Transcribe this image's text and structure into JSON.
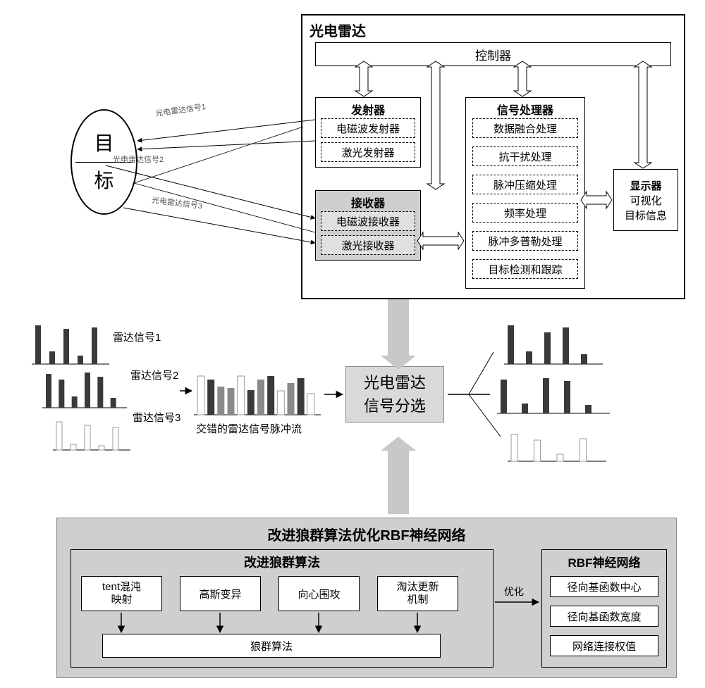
{
  "colors": {
    "bg": "#ffffff",
    "boxBorder": "#000000",
    "grayFill": "#cfcfcf",
    "lightGray": "#e8e8e8",
    "midGray": "#b8b8b8",
    "arrowGray": "#b8b8b8",
    "lineBlack": "#000000",
    "labelGray": "#666666"
  },
  "target": {
    "line1": "目",
    "line2": "标",
    "signalLabels": [
      "光电雷达信号1",
      "光电雷达信号2",
      "光电雷达信号3"
    ]
  },
  "radarSystem": {
    "title": "光电雷达",
    "controller": "控制器",
    "transmitter": {
      "title": "发射器",
      "items": [
        "电磁波发射器",
        "激光发射器"
      ]
    },
    "receiver": {
      "title": "接收器",
      "items": [
        "电磁波接收器",
        "激光接收器"
      ]
    },
    "processor": {
      "title": "信号处理器",
      "items": [
        "数据融合处理",
        "抗干扰处理",
        "脉冲压缩处理",
        "频率处理",
        "脉冲多普勒处理",
        "目标检测和跟踪"
      ]
    },
    "display": {
      "title": "显示器",
      "line1": "可视化",
      "line2": "目标信息"
    }
  },
  "middle": {
    "centerBox": {
      "line1": "光电雷达",
      "line2": "信号分选"
    },
    "leftSignals": [
      "雷达信号1",
      "雷达信号2",
      "雷达信号3"
    ],
    "interleaved": "交错的雷达信号脉冲流",
    "chart": {
      "barColors": {
        "dark": "#3a3a3a",
        "mid": "#8a8a8a",
        "light": "#d8d8d8",
        "outline": "#999999"
      },
      "axisColor": "#000000",
      "sig1Heights": [
        55,
        18,
        50,
        12,
        52
      ],
      "sig2Heights": [
        48,
        40,
        16,
        50,
        44,
        14
      ],
      "sig3Heights": [
        40,
        8,
        35,
        6,
        32
      ],
      "interHeights": [
        55,
        50,
        40,
        38,
        55,
        35,
        50,
        55,
        34,
        45,
        52,
        30
      ],
      "interShades": [
        "light",
        "dark",
        "mid",
        "mid",
        "light",
        "dark",
        "mid",
        "dark",
        "light",
        "mid",
        "dark",
        "light"
      ],
      "out1Heights": [
        55,
        18,
        45,
        52,
        14
      ],
      "out2Heights": [
        48,
        14,
        50,
        46,
        12
      ],
      "out3Heights": [
        38,
        30,
        10,
        32
      ]
    }
  },
  "bottom": {
    "panelTitle": "改进狼群算法优化RBF神经网络",
    "leftGroup": {
      "title": "改进狼群算法",
      "items": [
        "tent混沌\n映射",
        "高斯变异",
        "向心围攻",
        "淘汰更新\n机制"
      ],
      "base": "狼群算法"
    },
    "optimizeLabel": "优化",
    "rightGroup": {
      "title": "RBF神经网络",
      "items": [
        "径向基函数中心",
        "径向基函数宽度",
        "网络连接权值"
      ]
    }
  }
}
